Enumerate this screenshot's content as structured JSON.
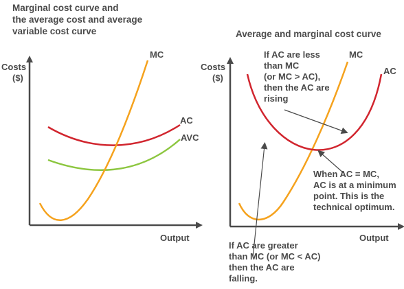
{
  "left": {
    "title_lines": [
      "Marginal cost curve and",
      "the average cost and average",
      "variable cost curve"
    ],
    "ylabel_lines": [
      "Costs",
      "($)"
    ],
    "xlabel": "Output",
    "curves": {
      "mc": "MC",
      "ac": "AC",
      "avc": "AVC"
    }
  },
  "right": {
    "title": "Average and marginal cost curve",
    "ylabel_lines": [
      "Costs",
      "($)"
    ],
    "xlabel": "Output",
    "curves": {
      "mc": "MC",
      "ac": "AC"
    },
    "annotations": {
      "rising_lines": [
        "If AC are less",
        "than MC",
        "(or MC > AC),",
        "then the AC are",
        "rising"
      ],
      "minimum_lines": [
        "When AC = MC,",
        "AC is at a minimum",
        "point. This is the",
        "technical optimum."
      ],
      "falling_lines": [
        "If AC are greater",
        "than MC (or MC < AC)",
        "then the AC are",
        "falling."
      ]
    }
  },
  "colors": {
    "mc": "#f5a21d",
    "ac": "#d1252e",
    "avc": "#8cc63f",
    "axis": "#4a4a4a",
    "arrow": "#4a4a4a"
  }
}
